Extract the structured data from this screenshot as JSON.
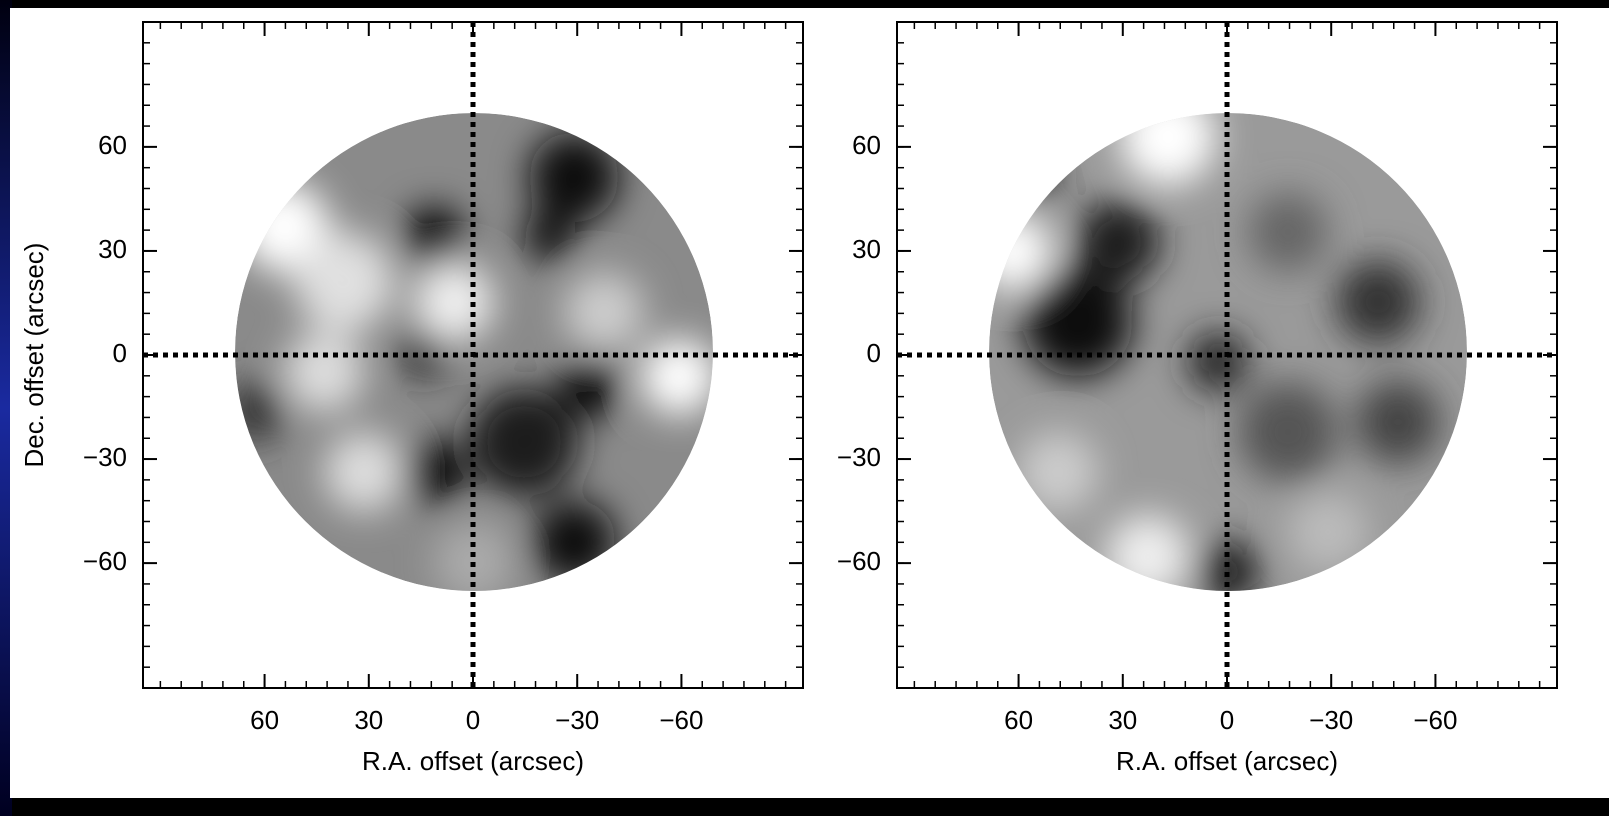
{
  "chart_data": [
    {
      "type": "image",
      "xlabel": "R.A. offset (arcsec)",
      "ylabel": "Dec. offset (arcsec)",
      "xlim": [
        95,
        -95
      ],
      "ylim": [
        -96,
        96
      ],
      "xticks": [
        60,
        30,
        0,
        {
          "value": -30,
          "label": "−30"
        },
        {
          "value": -60,
          "label": "−60"
        }
      ],
      "yticks": [
        {
          "value": -60,
          "label": "−60"
        },
        {
          "value": -30,
          "label": "−30"
        },
        0,
        30,
        60
      ],
      "minor_tick_step": 6,
      "crosshair": true
    },
    {
      "type": "image",
      "xlabel": "R.A. offset (arcsec)",
      "xlim": [
        95,
        -95
      ],
      "ylim": [
        -96,
        96
      ],
      "xticks": [
        60,
        30,
        0,
        {
          "value": -30,
          "label": "−30"
        },
        {
          "value": -60,
          "label": "−60"
        }
      ],
      "yticks": [
        {
          "value": -60,
          "label": "−60"
        },
        {
          "value": -30,
          "label": "−30"
        },
        0,
        30,
        60
      ],
      "minor_tick_step": 6,
      "crosshair": true
    }
  ]
}
